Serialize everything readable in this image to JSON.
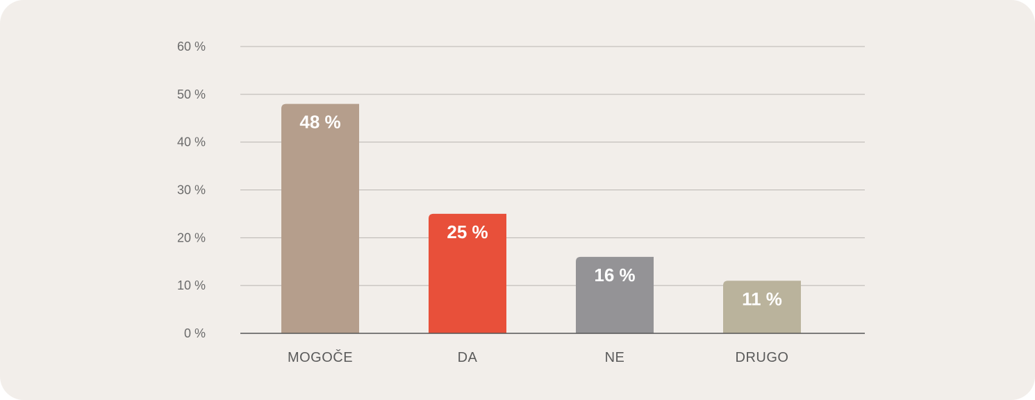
{
  "chart_data": {
    "type": "bar",
    "categories": [
      "MOGOČE",
      "DA",
      "NE",
      "DRUGO"
    ],
    "values": [
      48,
      25,
      16,
      11
    ],
    "data_labels": [
      "48 %",
      "25 %",
      "16 %",
      "11 %"
    ],
    "bar_colors": [
      "#b59e8c",
      "#e8503a",
      "#949396",
      "#bab39c"
    ],
    "yticks": [
      0,
      10,
      20,
      30,
      40,
      50,
      60
    ],
    "ytick_labels": [
      "0 %",
      "10 %",
      "20 %",
      "30 %",
      "40 %",
      "50 %",
      "60 %"
    ],
    "ylim": [
      0,
      60
    ],
    "grid": true,
    "legend": "none",
    "title": "",
    "xlabel": "",
    "ylabel": ""
  },
  "colors": {
    "background": "#f2eeea",
    "grid": "#b9b5b1",
    "axis": "#555555"
  }
}
